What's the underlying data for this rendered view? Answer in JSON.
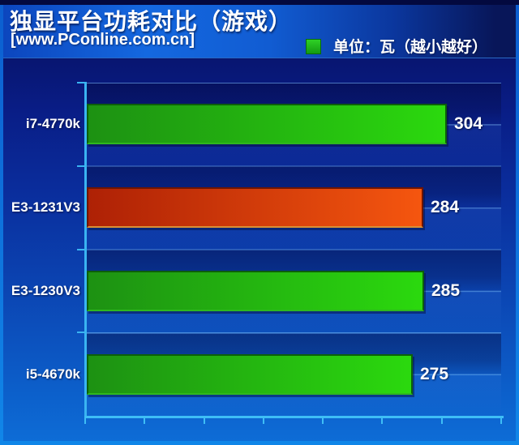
{
  "header": {
    "title": "独显平台功耗对比（游戏）",
    "subtitle": "[www.PConline.com.cn]",
    "legend": {
      "label": "单位：瓦（越小越好）",
      "swatch_color": "#1fb41f"
    }
  },
  "chart_data": {
    "type": "bar",
    "orientation": "horizontal",
    "title": "独显平台功耗对比（游戏）",
    "source": "[www.PConline.com.cn]",
    "unit_note": "单位：瓦（越小越好）",
    "categories": [
      "i7-4770k",
      "E3-1231V3",
      "E3-1230V3",
      "i5-4670k"
    ],
    "values": [
      304,
      284,
      285,
      275
    ],
    "highlight_index": 1,
    "xlim": [
      0,
      350
    ],
    "x_tick_interval": 50,
    "x_tick_count": 8,
    "tick_labels_shown": false,
    "grid": true,
    "legend_position": "top-right",
    "lower_is_better": true
  },
  "styles": {
    "axis_color": "#3ab4f2",
    "grid_color": "rgba(140,205,255,0.5)",
    "text_color": "#ffffff",
    "bar_colors": {
      "green": {
        "from": "#1d9112",
        "to": "#2bd90e",
        "border": "#0c5f0a",
        "bottom": "#2fb81e"
      },
      "red": {
        "from": "#ae2105",
        "to": "#f5560f",
        "border": "#6e1503",
        "bottom": "#d98f35"
      }
    }
  }
}
